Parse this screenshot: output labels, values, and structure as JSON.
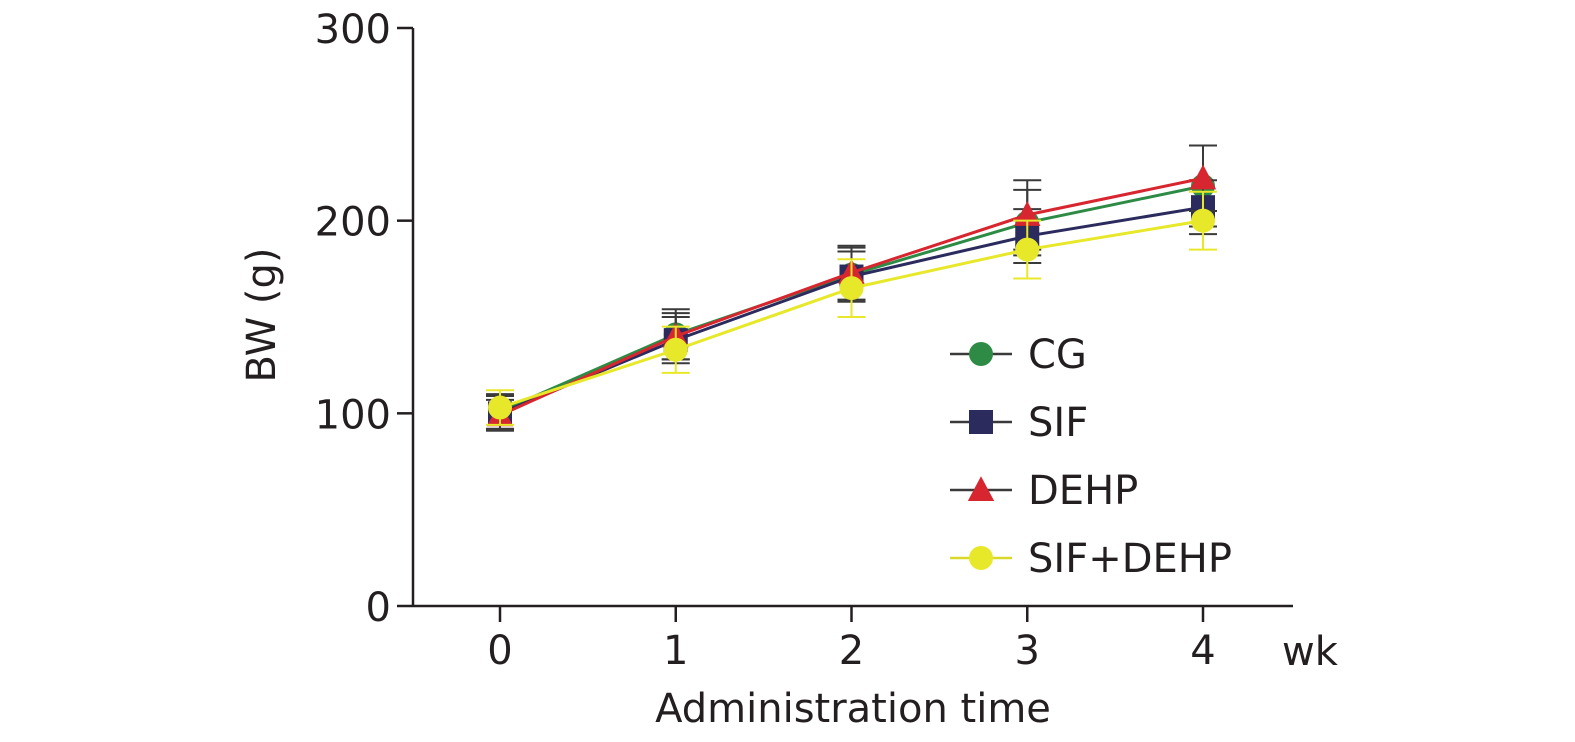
{
  "chart_data": {
    "type": "line",
    "title": "",
    "xlabel": "Administration time",
    "x_unit": "wk",
    "ylabel": "BW (g)",
    "ylim": [
      0,
      300
    ],
    "yticks": [
      0,
      100,
      200,
      300
    ],
    "x": [
      0,
      1,
      2,
      3,
      4
    ],
    "legend_position": "center-right",
    "series": [
      {
        "name": "CG",
        "marker": "circle",
        "color": "#2e8b45",
        "values": [
          101,
          141,
          172,
          199,
          218
        ],
        "errors": [
          9,
          13,
          14,
          17,
          21
        ]
      },
      {
        "name": "SIF",
        "marker": "square",
        "color": "#2b2b5e",
        "values": [
          100,
          138,
          171,
          192,
          207
        ],
        "errors": [
          9,
          12,
          13,
          14,
          14
        ]
      },
      {
        "name": "DEHP",
        "marker": "triangle",
        "color": "#d7262f",
        "values": [
          99,
          140,
          173,
          203,
          222
        ],
        "errors": [
          8,
          12,
          14,
          18,
          17
        ]
      },
      {
        "name": "SIF+DEHP",
        "marker": "circle",
        "color": "#e8e82a",
        "values": [
          103,
          133,
          165,
          185,
          200
        ],
        "errors": [
          9,
          12,
          15,
          15,
          15
        ]
      }
    ]
  }
}
